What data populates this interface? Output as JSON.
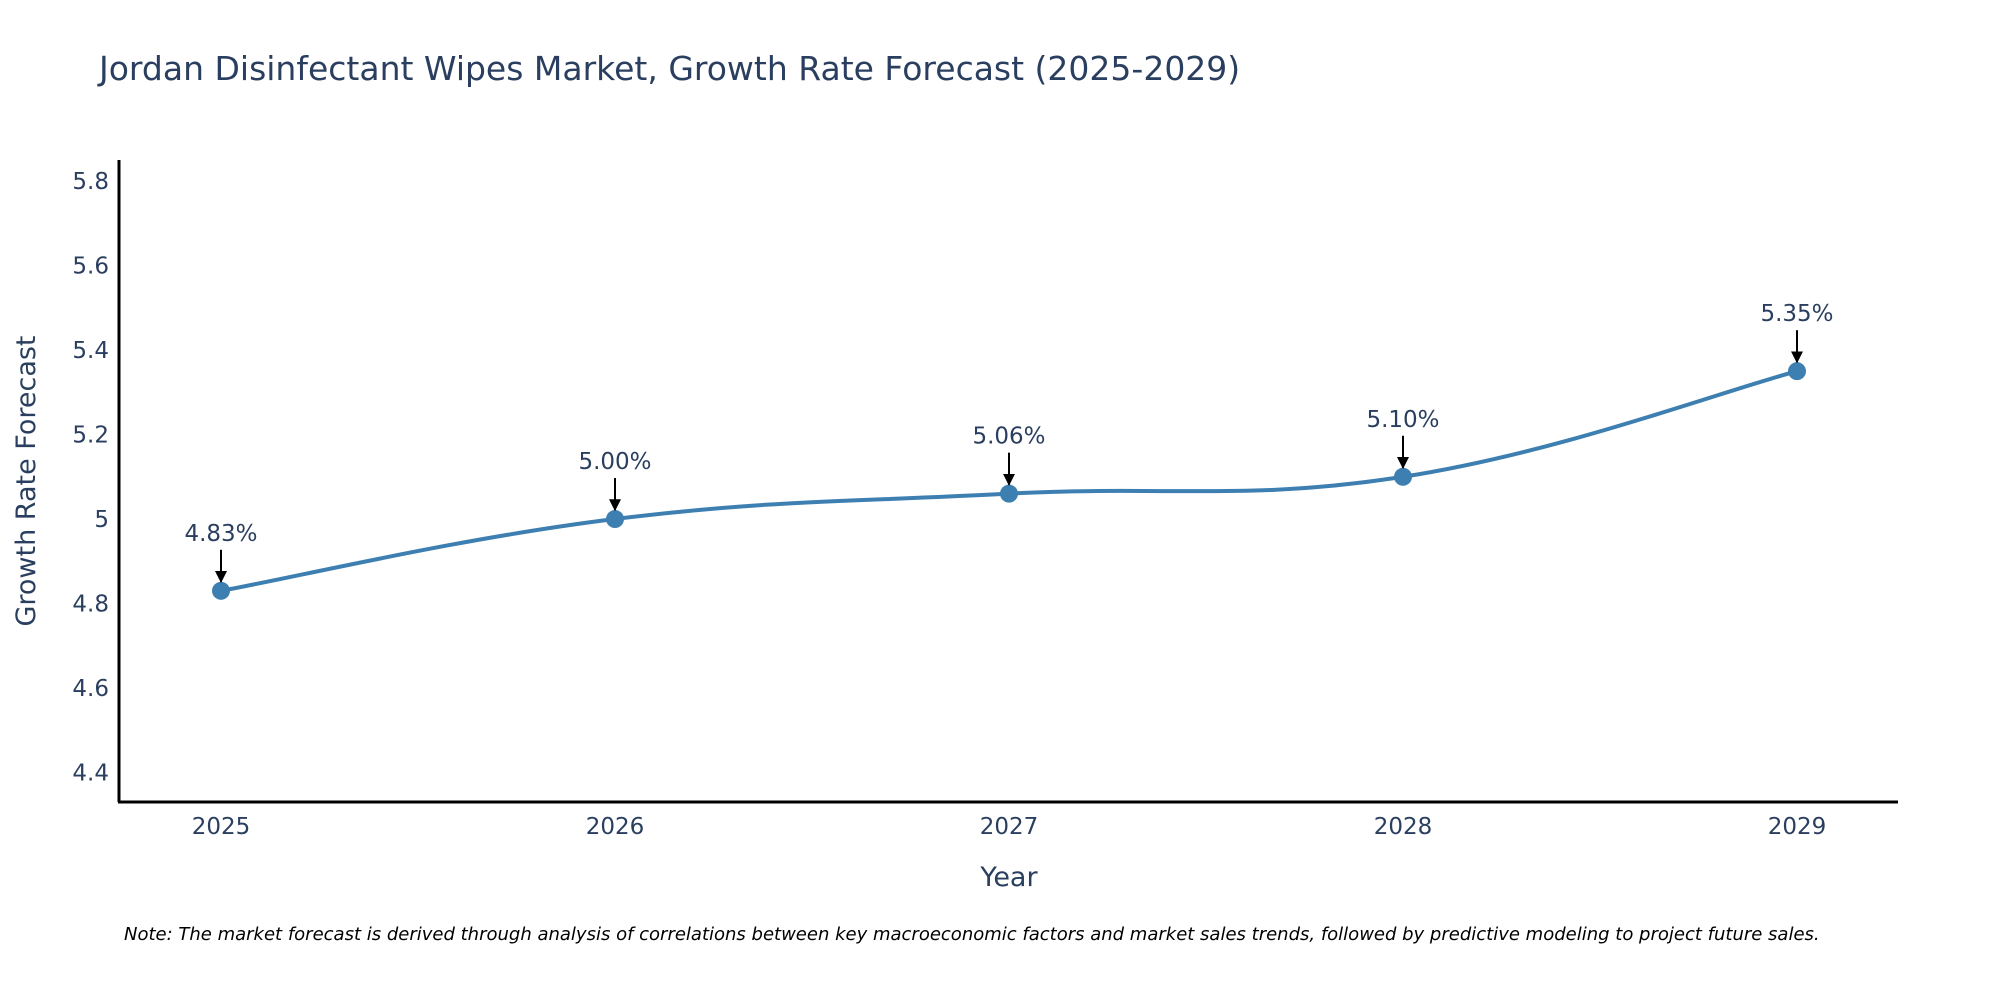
{
  "chart_data": {
    "type": "line",
    "title": "Jordan Disinfectant Wipes Market, Growth Rate Forecast (2025-2029)",
    "xlabel": "Year",
    "ylabel": "Growth Rate Forecast",
    "categories": [
      "2025",
      "2026",
      "2027",
      "2028",
      "2029"
    ],
    "values": [
      4.83,
      5.0,
      5.06,
      5.1,
      5.35
    ],
    "data_labels": [
      "4.83%",
      "5.00%",
      "5.06%",
      "5.10%",
      "5.35%"
    ],
    "ylim": [
      4.33,
      5.85
    ],
    "yticks": [
      4.4,
      4.6,
      4.8,
      5.0,
      5.2,
      5.4,
      5.6,
      5.8
    ],
    "ytick_labels": [
      "4.4",
      "4.6",
      "4.8",
      "5",
      "5.2",
      "5.4",
      "5.6",
      "5.8"
    ],
    "line_color": "#3d7fb0",
    "marker_color": "#3d7fb0",
    "arrow_color": "#000000",
    "grid": false,
    "note": "Note: The market forecast is derived through analysis of correlations between key macroeconomic factors and market sales trends, followed by predictive modeling to project future sales."
  }
}
